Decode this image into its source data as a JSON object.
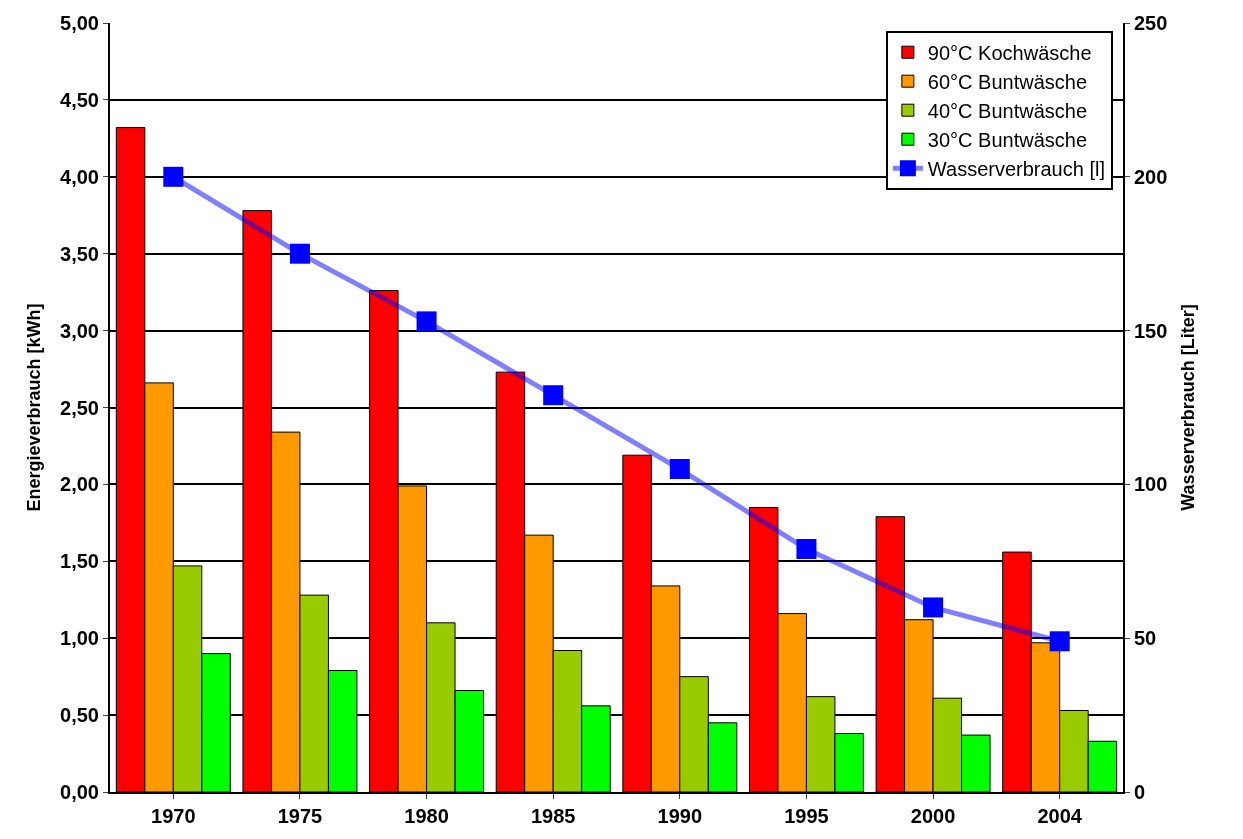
{
  "chart_data": {
    "type": "bar",
    "ylabel": "Energieverbrauch [kWh]",
    "y2label": "Wasserverbrauch [Liter]",
    "categories": [
      "1970",
      "1975",
      "1980",
      "1985",
      "1990",
      "1995",
      "2000",
      "2004"
    ],
    "series": [
      {
        "name": "90°C Kochwäsche",
        "color": "#ff0000",
        "values": [
          4.32,
          3.78,
          3.26,
          2.73,
          2.19,
          1.85,
          1.79,
          1.56
        ]
      },
      {
        "name": "60°C Buntwäsche",
        "color": "#ff9900",
        "values": [
          2.66,
          2.34,
          1.99,
          1.67,
          1.34,
          1.16,
          1.12,
          0.97
        ]
      },
      {
        "name": "40°C Buntwäsche",
        "color": "#99cc00",
        "values": [
          1.47,
          1.28,
          1.1,
          0.92,
          0.75,
          0.62,
          0.61,
          0.53
        ]
      },
      {
        "name": "30°C Buntwäsche",
        "color": "#00ff00",
        "values": [
          0.9,
          0.79,
          0.66,
          0.56,
          0.45,
          0.38,
          0.37,
          0.33
        ]
      },
      {
        "name": "Wasserverbrauch [l]",
        "type": "line",
        "axis": "y2",
        "color": "#0000ff",
        "marker": "square",
        "values": [
          200,
          175,
          153,
          129,
          105,
          79,
          60,
          49
        ]
      }
    ],
    "ylim": [
      0,
      5
    ],
    "yticks": [
      {
        "value": 0,
        "label": "0,00"
      },
      {
        "value": 0.5,
        "label": "0,50"
      },
      {
        "value": 1,
        "label": "1,00"
      },
      {
        "value": 1.5,
        "label": "1,50"
      },
      {
        "value": 2,
        "label": "2,00"
      },
      {
        "value": 2.5,
        "label": "2,50"
      },
      {
        "value": 3,
        "label": "3,00"
      },
      {
        "value": 3.5,
        "label": "3,50"
      },
      {
        "value": 4,
        "label": "4,00"
      },
      {
        "value": 4.5,
        "label": "4,50"
      },
      {
        "value": 5,
        "label": "5,00"
      }
    ],
    "y2lim": [
      0,
      250
    ],
    "y2ticks": [
      0,
      50,
      100,
      150,
      200,
      250
    ],
    "grid": "y",
    "legend": "top right"
  }
}
